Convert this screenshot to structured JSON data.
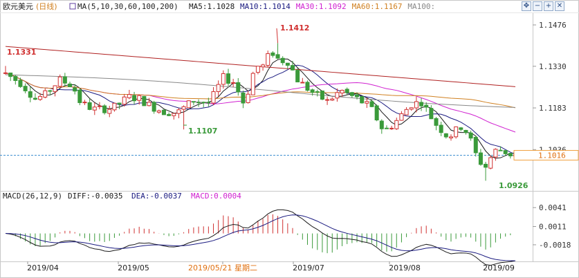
{
  "header": {
    "instrument": "欧元美元",
    "period": "(日线)",
    "ma_params": "MA(5,10,30,60,100,200)",
    "ma_values": [
      {
        "label": "MA5:1.1028",
        "color": "#1a1a1a"
      },
      {
        "label": "MA10:1.1014",
        "color": "#1a1a80"
      },
      {
        "label": "MA30:1.1092",
        "color": "#d020d0"
      },
      {
        "label": "MA60:1.1167",
        "color": "#d08020"
      },
      {
        "label": "MA100:",
        "color": "#888888"
      }
    ]
  },
  "toolbar": {
    "icons": [
      "move-icon",
      "zoom-out-icon",
      "zoom-in-icon",
      "close-icon"
    ],
    "glyphs": [
      "✥",
      "−",
      "+",
      "✕"
    ]
  },
  "chart_data": [
    {
      "type": "candlestick",
      "title": "欧元美元(日线)",
      "y_ticks": [
        "1.1476",
        "1.1330",
        "1.1183",
        "1.1036"
      ],
      "ylim": [
        1.09,
        1.152
      ],
      "last_price": "1.1016",
      "annotations": {
        "high": "1.1412",
        "start": "1.1331",
        "low1": "1.1107",
        "low2": "1.0926"
      },
      "x_ticks": [
        "2019/04",
        "2019/05",
        "2019/05/21 星期二",
        "2019/07",
        "2019/08",
        "2019/09"
      ],
      "moving_averages": [
        {
          "name": "MA5",
          "value": 1.1028,
          "color": "#1a1a1a"
        },
        {
          "name": "MA10",
          "value": 1.1014,
          "color": "#1a1a80"
        },
        {
          "name": "MA30",
          "value": 1.1092,
          "color": "#d020d0"
        },
        {
          "name": "MA60",
          "value": 1.1167,
          "color": "#d08020"
        },
        {
          "name": "MA100",
          "value": 1.119,
          "color": "#888888"
        },
        {
          "name": "MA200",
          "value": 1.1258,
          "color": "#b02020"
        }
      ],
      "colors": {
        "up": "#d03030",
        "down": "#3a9a3a"
      }
    },
    {
      "type": "macd",
      "label": "MACD(26,12,9)",
      "diff_label": "DIFF:-0.0035",
      "dea_label": "DEA:-0.0037",
      "macd_label": "MACD:0.0004",
      "diff": -0.0035,
      "dea": -0.0037,
      "macd": 0.0004,
      "y_ticks": [
        "0.0041",
        "0.0011",
        "-0.0018"
      ],
      "ylim": [
        -0.004,
        0.005
      ],
      "colors": {
        "diff": "#1a1a1a",
        "dea": "#1a1a80",
        "macd_up": "#d03030",
        "macd_down": "#3a9a3a"
      }
    }
  ]
}
